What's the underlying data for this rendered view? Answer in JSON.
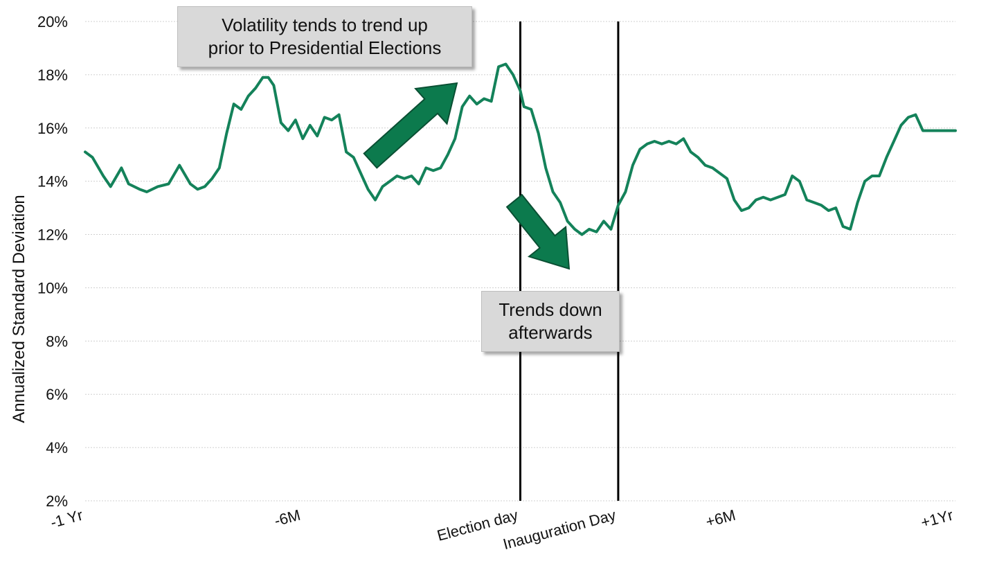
{
  "chart_data": {
    "type": "line",
    "title": "",
    "xlabel": "",
    "ylabel": "Annualized Standard Deviation",
    "ylim": [
      2,
      20
    ],
    "y_ticks": [
      "2%",
      "4%",
      "6%",
      "8%",
      "10%",
      "12%",
      "14%",
      "16%",
      "18%",
      "20%"
    ],
    "x_range": [
      -12,
      12
    ],
    "x_ticks": [
      {
        "x": -12,
        "label": "-1 Yr"
      },
      {
        "x": -6,
        "label": "-6M"
      },
      {
        "x": 0,
        "label": "Election day"
      },
      {
        "x": 2.7,
        "label": "Inauguration Day"
      },
      {
        "x": 6,
        "label": "+6M"
      },
      {
        "x": 12,
        "label": "+1Yr"
      }
    ],
    "grid": true,
    "color": "#14825a",
    "vertical_markers": [
      {
        "x": 0,
        "label": "Election day"
      },
      {
        "x": 2.7,
        "label": "Inauguration Day"
      }
    ],
    "annotations": [
      {
        "text_lines": [
          "Volatility tends to trend up",
          "prior to Presidential Elections"
        ],
        "arrow": "up"
      },
      {
        "text_lines": [
          "Trends down",
          "afterwards"
        ],
        "arrow": "down"
      }
    ],
    "series": [
      {
        "x": [
          -12.0,
          -11.8,
          -11.5,
          -11.3,
          -11.0,
          -10.8,
          -10.5,
          -10.3,
          -10.0,
          -9.7,
          -9.4,
          -9.1,
          -8.9,
          -8.7,
          -8.5,
          -8.3,
          -8.1,
          -7.9,
          -7.7,
          -7.5,
          -7.3,
          -7.1,
          -6.95,
          -6.8,
          -6.6,
          -6.4,
          -6.2,
          -6.0,
          -5.8,
          -5.6,
          -5.4,
          -5.2,
          -5.0,
          -4.8,
          -4.6,
          -4.4,
          -4.2,
          -4.0,
          -3.8,
          -3.6,
          -3.4,
          -3.2,
          -3.0,
          -2.8,
          -2.6,
          -2.4,
          -2.2,
          -2.0,
          -1.8,
          -1.6,
          -1.4,
          -1.2,
          -1.0,
          -0.8,
          -0.6,
          -0.4,
          -0.2,
          0.0,
          0.1,
          0.3,
          0.5,
          0.7,
          0.9,
          1.1,
          1.3,
          1.5,
          1.7,
          1.9,
          2.1,
          2.3,
          2.5,
          2.7,
          2.9,
          3.1,
          3.3,
          3.5,
          3.7,
          3.9,
          4.1,
          4.3,
          4.5,
          4.7,
          4.9,
          5.1,
          5.3,
          5.5,
          5.7,
          5.9,
          6.1,
          6.3,
          6.5,
          6.7,
          6.9,
          7.1,
          7.3,
          7.5,
          7.7,
          7.9,
          8.1,
          8.3,
          8.5,
          8.7,
          8.9,
          9.1,
          9.3,
          9.5,
          9.7,
          9.9,
          10.1,
          10.3,
          10.5,
          10.7,
          10.9,
          11.1,
          11.3,
          11.5,
          11.7,
          11.9,
          12.0
        ],
        "y": [
          15.1,
          14.9,
          14.2,
          13.8,
          14.5,
          13.9,
          13.7,
          13.6,
          13.8,
          13.9,
          14.6,
          13.9,
          13.7,
          13.8,
          14.1,
          14.5,
          15.8,
          16.9,
          16.7,
          17.2,
          17.5,
          17.9,
          17.9,
          17.6,
          16.2,
          15.9,
          16.3,
          15.6,
          16.1,
          15.7,
          16.4,
          16.3,
          16.5,
          15.1,
          14.9,
          14.3,
          13.7,
          13.3,
          13.8,
          14.0,
          14.2,
          14.1,
          14.2,
          13.9,
          14.5,
          14.4,
          14.5,
          15.0,
          15.6,
          16.8,
          17.2,
          16.9,
          17.1,
          17.0,
          18.3,
          18.4,
          18.0,
          17.4,
          16.8,
          16.7,
          15.8,
          14.5,
          13.6,
          13.2,
          12.5,
          12.2,
          12.0,
          12.2,
          12.1,
          12.5,
          12.2,
          13.1,
          13.6,
          14.6,
          15.2,
          15.4,
          15.5,
          15.4,
          15.5,
          15.4,
          15.6,
          15.1,
          14.9,
          14.6,
          14.5,
          14.3,
          14.1,
          13.3,
          12.9,
          13.0,
          13.3,
          13.4,
          13.3,
          13.4,
          13.5,
          14.2,
          14.0,
          13.3,
          13.2,
          13.1,
          12.9,
          13.0,
          12.3,
          12.2,
          13.2,
          14.0,
          14.2,
          14.2,
          14.9,
          15.5,
          16.1,
          16.4,
          16.5,
          15.9,
          15.9,
          15.9,
          15.9,
          15.9,
          15.9
        ]
      }
    ]
  }
}
